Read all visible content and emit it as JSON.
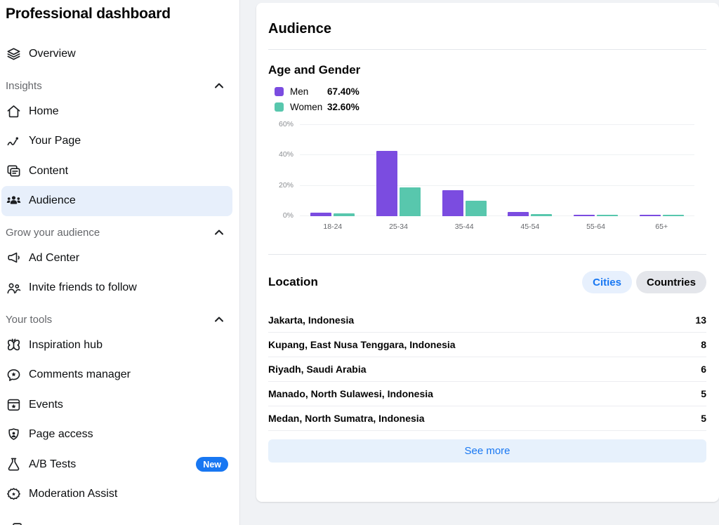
{
  "colors": {
    "accent_blue": "#1877F2",
    "men_purple": "#7B4CE0",
    "women_teal": "#58C7AD",
    "selected_nav_bg": "#E7EFFB",
    "page_bg": "#F0F2F5"
  },
  "sidebar": {
    "title": "Professional dashboard",
    "items": [
      {
        "label": "Overview",
        "icon": "layers-icon"
      },
      {
        "label": "Insights",
        "type": "section"
      },
      {
        "label": "Home",
        "icon": "home-icon"
      },
      {
        "label": "Your Page",
        "icon": "trend-icon"
      },
      {
        "label": "Content",
        "icon": "content-icon"
      },
      {
        "label": "Audience",
        "icon": "audience-icon",
        "selected": true
      },
      {
        "label": "Grow your audience",
        "type": "section"
      },
      {
        "label": "Ad Center",
        "icon": "megaphone-icon"
      },
      {
        "label": "Invite friends to follow",
        "icon": "invite-icon"
      },
      {
        "label": "Your tools",
        "type": "section"
      },
      {
        "label": "Inspiration hub",
        "icon": "butterfly-icon"
      },
      {
        "label": "Comments manager",
        "icon": "comment-star-icon"
      },
      {
        "label": "Events",
        "icon": "calendar-star-icon"
      },
      {
        "label": "Page access",
        "icon": "shield-person-icon"
      },
      {
        "label": "A/B Tests",
        "icon": "flask-icon",
        "badge": "New"
      },
      {
        "label": "Moderation Assist",
        "icon": "moderation-icon"
      }
    ]
  },
  "main": {
    "title": "Audience",
    "age_gender": {
      "title": "Age and Gender",
      "legend": [
        {
          "label": "Men",
          "value": "67.40%"
        },
        {
          "label": "Women",
          "value": "32.60%"
        }
      ]
    },
    "location": {
      "title": "Location",
      "tabs": [
        {
          "label": "Cities",
          "selected": true
        },
        {
          "label": "Countries",
          "selected": false
        }
      ],
      "rows": [
        {
          "name": "Jakarta, Indonesia",
          "value": "13"
        },
        {
          "name": "Kupang, East Nusa Tenggara, Indonesia",
          "value": "8"
        },
        {
          "name": "Riyadh, Saudi Arabia",
          "value": "6"
        },
        {
          "name": "Manado, North Sulawesi, Indonesia",
          "value": "5"
        },
        {
          "name": "Medan, North Sumatra, Indonesia",
          "value": "5"
        }
      ],
      "see_more_label": "See more"
    }
  },
  "chart_data": {
    "type": "bar",
    "title": "Age and Gender",
    "categories": [
      "18-24",
      "25-34",
      "35-44",
      "45-54",
      "55-64",
      "65+"
    ],
    "series": [
      {
        "name": "Men",
        "color": "#7B4CE0",
        "total": "67.40%",
        "values": [
          2.5,
          43,
          17.3,
          3,
          0.8,
          0.8
        ]
      },
      {
        "name": "Women",
        "color": "#58C7AD",
        "total": "32.60%",
        "values": [
          1.8,
          18.8,
          10,
          1.2,
          0.4,
          0.4
        ]
      }
    ],
    "xlabel": "",
    "ylabel": "",
    "yticks": [
      0,
      20,
      40,
      60
    ],
    "ytick_labels": [
      "0%",
      "20%",
      "40%",
      "60%"
    ],
    "ylim": [
      0,
      60
    ],
    "grid": true,
    "legend_position": "top-left"
  }
}
